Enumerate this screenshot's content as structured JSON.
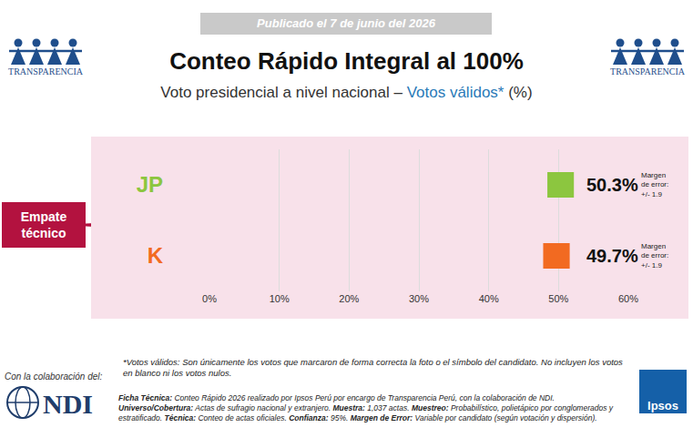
{
  "header": {
    "published": "Publicado el 7 de junio del 2026",
    "org": "TRANSPARENCIA",
    "title": "Conteo Rápido Integral al 100%",
    "subtitle": {
      "text": "Voto presidencial a nivel nacional –",
      "highlight": "Votos válidos*",
      "suffix": "(%)"
    }
  },
  "chart_data": {
    "type": "bar",
    "orientation": "horizontal",
    "categories": [
      "JP",
      "K"
    ],
    "values": [
      50.3,
      49.7
    ],
    "value_labels": [
      "50.3%",
      "49.7%"
    ],
    "errors": [
      1.9,
      1.9
    ],
    "error_title": "Margen de error:",
    "error_labels": [
      "+/- 1.9",
      "+/- 1.9"
    ],
    "colors": [
      "#8cc63f",
      "#f26a21"
    ],
    "xlim": [
      0,
      60
    ],
    "xticks": [
      {
        "value": 0,
        "label": "0%"
      },
      {
        "value": 10,
        "label": "10%"
      },
      {
        "value": 20,
        "label": "20%"
      },
      {
        "value": 30,
        "label": "30%"
      },
      {
        "value": 40,
        "label": "40%"
      },
      {
        "value": 50,
        "label": "50%"
      },
      {
        "value": 60,
        "label": "60%"
      }
    ],
    "grid": true,
    "data_labels": true,
    "annotation": "Empate técnico"
  },
  "footer": {
    "footnote": "*Votos válidos: Son únicamente los votos que marcaron de forma correcta la foto o el símbolo del candidato. No incluyen los votos en blanco ni los votos nulos.",
    "collab": "Con la colaboración del:",
    "ndi": "NDI",
    "ficha": [
      {
        "label": "Ficha Técnica:",
        "text": "Conteo Rápido 2026 realizado por Ipsos Perú por encargo de Transparencia Perú, con la colaboración de NDI."
      },
      {
        "label": "Universo/Cobertura:",
        "text": "Actas de sufragio nacional y extranjero."
      },
      {
        "label": "Muestra:",
        "text": "1,037 actas."
      },
      {
        "label": "Muestreo:",
        "text": "Probabilístico, polietápico por conglomerados y estratificado."
      },
      {
        "label": "Técnica:",
        "text": "Conteo de actas oficiales."
      },
      {
        "label": "Confianza:",
        "text": "95%."
      },
      {
        "label": "Margen de Error:",
        "text": "Variable por candidato (según votación y dispersión)."
      }
    ],
    "ipsos": "Ipsos"
  }
}
